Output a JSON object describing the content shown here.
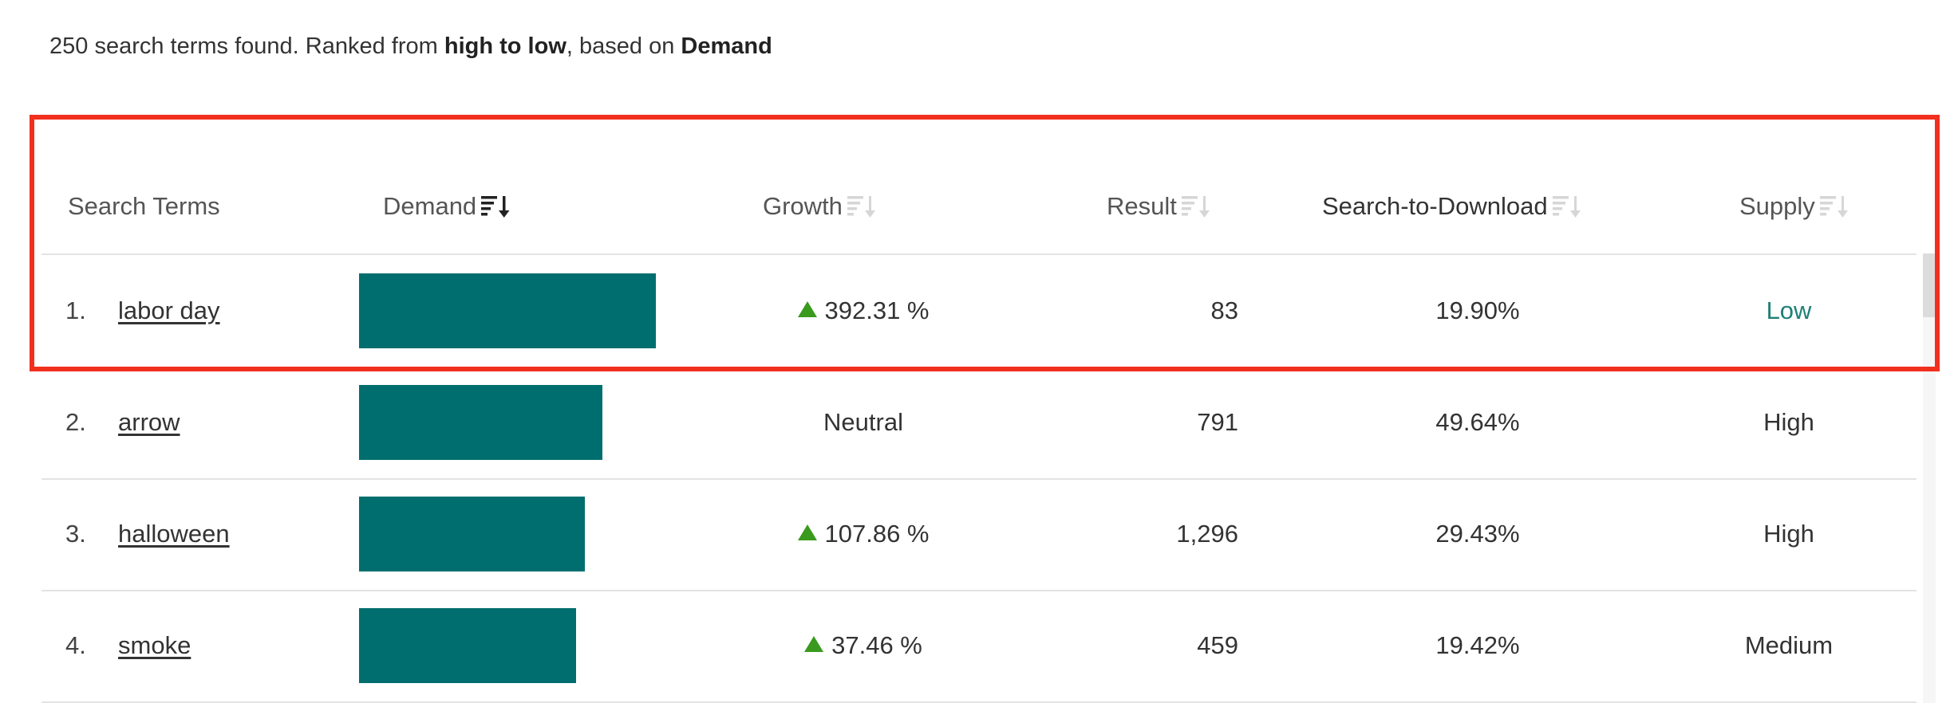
{
  "summary": {
    "count": "250",
    "text1": " search terms found. Ranked from ",
    "bold1": "high to low",
    "text2": ", based on ",
    "bold2": "Demand"
  },
  "headers": {
    "search_terms": "Search Terms",
    "demand": "Demand",
    "growth": "Growth",
    "result": "Result",
    "search_to_download": "Search-to-Download",
    "supply": "Supply"
  },
  "icons": {
    "sort_active": "sort-descending-icon",
    "sort_inactive": "sort-icon"
  },
  "colors": {
    "demand_bar": "#006e6e",
    "growth_up": "#3a9a1d",
    "supply_low": "#1e8077",
    "highlight": "#f2301e"
  },
  "rows": [
    {
      "rank": "1.",
      "term": "labor day",
      "demand_fraction": 1.0,
      "growth": "392.31 %",
      "growth_trend": "up",
      "result": "83",
      "search_to_download": "19.90%",
      "supply": "Low"
    },
    {
      "rank": "2.",
      "term": "arrow",
      "demand_fraction": 0.82,
      "growth": "Neutral",
      "growth_trend": "neutral",
      "result": "791",
      "search_to_download": "49.64%",
      "supply": "High"
    },
    {
      "rank": "3.",
      "term": "halloween",
      "demand_fraction": 0.76,
      "growth": "107.86 %",
      "growth_trend": "up",
      "result": "1,296",
      "search_to_download": "29.43%",
      "supply": "High"
    },
    {
      "rank": "4.",
      "term": "smoke",
      "demand_fraction": 0.73,
      "growth": "37.46 %",
      "growth_trend": "up",
      "result": "459",
      "search_to_download": "19.42%",
      "supply": "Medium"
    }
  ]
}
